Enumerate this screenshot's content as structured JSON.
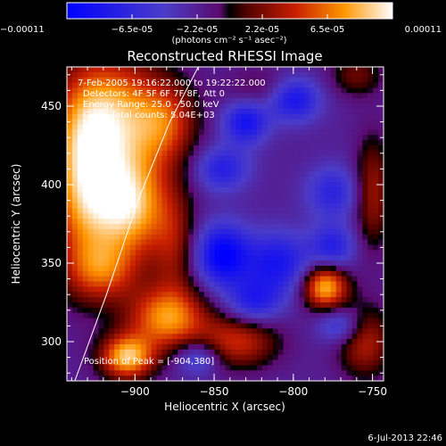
{
  "chart_data": {
    "type": "heatmap",
    "title": "Reconstructed RHESSI Image",
    "xlabel": "Heliocentric X (arcsec)",
    "ylabel": "Heliocentric Y (arcsec)",
    "xlim": [
      -943,
      -743
    ],
    "ylim": [
      275,
      475
    ],
    "xticks": [
      -900,
      -850,
      -800,
      -750
    ],
    "yticks": [
      300,
      350,
      400,
      450
    ],
    "colorbar": {
      "min": -0.00011,
      "max": 0.00011,
      "ticks": [
        "-0.00011",
        "-6.5e-05",
        "-2.2e-05",
        "2.2e-05",
        "6.5e-05",
        "0.00011"
      ],
      "unit_label": "(photons cm⁻² s⁻¹ asec⁻²)"
    },
    "annotations": {
      "time": "7-Feb-2005 19:16:22.000 to 19:22:22.000",
      "detectors": "Detectors: 4F 5F 6F 7F 8F, Att 0",
      "energy": "Energy Range: 25.0 - 50.0 keV",
      "clean": "Clean    Total counts: 5.04E+03",
      "peak": "Position of Peak = [-904,380]"
    },
    "limb_curve": [
      [
        -938,
        275
      ],
      [
        -918,
        330
      ],
      [
        -898,
        390
      ],
      [
        -878,
        440
      ],
      [
        -860,
        475
      ]
    ],
    "blobs": [
      {
        "x": -915,
        "y": 440,
        "v": 1.0,
        "sx": 22,
        "sy": 30
      },
      {
        "x": -905,
        "y": 385,
        "v": 1.0,
        "sx": 18,
        "sy": 22
      },
      {
        "x": -935,
        "y": 400,
        "v": 0.7,
        "sx": 14,
        "sy": 40
      },
      {
        "x": -920,
        "y": 345,
        "v": 0.6,
        "sx": 16,
        "sy": 14
      },
      {
        "x": -905,
        "y": 290,
        "v": 1.0,
        "sx": 12,
        "sy": 10
      },
      {
        "x": -880,
        "y": 315,
        "v": 0.85,
        "sx": 18,
        "sy": 14
      },
      {
        "x": -880,
        "y": 440,
        "v": 0.55,
        "sx": 14,
        "sy": 18
      },
      {
        "x": -875,
        "y": 360,
        "v": 0.4,
        "sx": 10,
        "sy": 25
      },
      {
        "x": -835,
        "y": 300,
        "v": 0.6,
        "sx": 18,
        "sy": 12
      },
      {
        "x": -780,
        "y": 335,
        "v": 1.0,
        "sx": 10,
        "sy": 10
      },
      {
        "x": -755,
        "y": 300,
        "v": 0.55,
        "sx": 12,
        "sy": 16
      },
      {
        "x": -750,
        "y": 395,
        "v": 0.5,
        "sx": 8,
        "sy": 25
      },
      {
        "x": -760,
        "y": 470,
        "v": 0.35,
        "sx": 12,
        "sy": 10
      },
      {
        "x": -815,
        "y": 460,
        "v": 0.3,
        "sx": 18,
        "sy": 10
      },
      {
        "x": -830,
        "y": 440,
        "v": -0.65,
        "sx": 10,
        "sy": 10
      },
      {
        "x": -800,
        "y": 455,
        "v": -0.75,
        "sx": 12,
        "sy": 10
      },
      {
        "x": -845,
        "y": 410,
        "v": -0.5,
        "sx": 12,
        "sy": 10
      },
      {
        "x": -775,
        "y": 395,
        "v": -0.45,
        "sx": 12,
        "sy": 12
      },
      {
        "x": -845,
        "y": 355,
        "v": -0.8,
        "sx": 12,
        "sy": 14
      },
      {
        "x": -810,
        "y": 350,
        "v": -0.6,
        "sx": 15,
        "sy": 14
      },
      {
        "x": -775,
        "y": 360,
        "v": -0.5,
        "sx": 10,
        "sy": 10
      },
      {
        "x": -825,
        "y": 325,
        "v": -0.5,
        "sx": 12,
        "sy": 10
      },
      {
        "x": -770,
        "y": 310,
        "v": -0.45,
        "sx": 10,
        "sy": 8
      },
      {
        "x": -860,
        "y": 290,
        "v": -0.45,
        "sx": 10,
        "sy": 8
      }
    ],
    "baseline": -0.2
  },
  "footer": {
    "timestamp": "6-Jul-2013 22:46"
  }
}
